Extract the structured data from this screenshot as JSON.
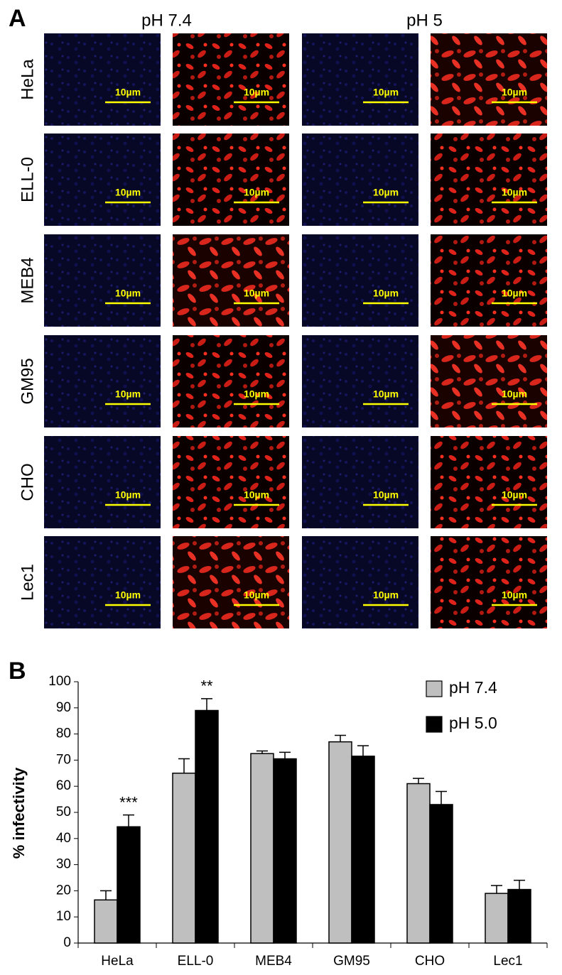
{
  "panel_a": {
    "panel_label": "A",
    "columns": [
      "pH 7.4",
      "pH 5"
    ],
    "rows": [
      "HeLa",
      "ELL-0",
      "MEB4",
      "GM95",
      "CHO",
      "Lec1"
    ],
    "scale_bar": "10µm"
  },
  "chart_data": {
    "type": "bar",
    "panel_label": "B",
    "y_label": "% infectivity",
    "categories": [
      "HeLa",
      "ELL-0",
      "MEB4",
      "GM95",
      "CHO",
      "Lec1"
    ],
    "series": [
      {
        "name": "pH 7.4",
        "color": "#bfbfbf",
        "values": [
          16.5,
          65,
          72.5,
          77,
          61,
          19
        ],
        "errors": [
          3.5,
          5.5,
          1,
          2.5,
          2,
          3
        ]
      },
      {
        "name": "pH 5.0",
        "color": "#000000",
        "values": [
          44.5,
          89,
          70.5,
          71.5,
          53,
          20.5
        ],
        "errors": [
          4.5,
          4.5,
          2.5,
          4,
          5,
          3.5
        ]
      }
    ],
    "annotations": [
      {
        "text": "***",
        "category": "HeLa",
        "series": "pH 5.0"
      },
      {
        "text": "**",
        "category": "ELL-0",
        "series": "pH 5.0"
      }
    ],
    "ylim": [
      0,
      100
    ],
    "yticks": [
      0,
      10,
      20,
      30,
      40,
      50,
      60,
      70,
      80,
      90,
      100
    ],
    "grid": false,
    "legend": "top-right"
  }
}
